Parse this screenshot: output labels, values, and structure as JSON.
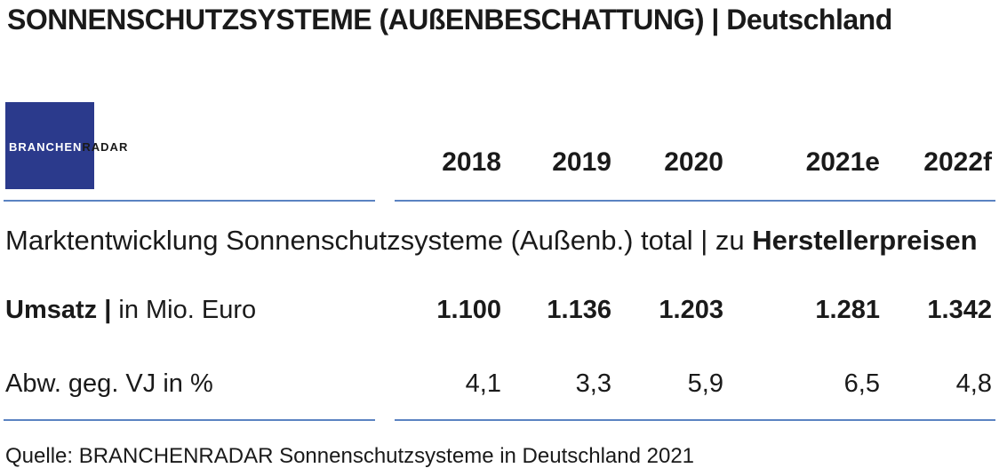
{
  "title": "SONNENSCHUTZSYSTEME (AUßENBESCHATTUNG) | Deutschland",
  "logo": {
    "text_part1": "BRANCHEN",
    "text_part2": "RADAR"
  },
  "section": {
    "label_regular": "Marktentwicklung Sonnenschutzsysteme (Außenb.) total | zu ",
    "label_bold": "Herstellerpreisen"
  },
  "rows": {
    "umsatz": {
      "label_bold": "Umsatz |",
      "label_regular": " in Mio. Euro"
    },
    "abw": {
      "label": "Abw. geg. VJ in %"
    }
  },
  "source": "Quelle: BRANCHENRADAR Sonnenschutzsysteme in Deutschland 2021",
  "chart_data": {
    "type": "table",
    "columns": [
      "2018",
      "2019",
      "2020",
      "2021e",
      "2022f"
    ],
    "rows": [
      {
        "name": "Umsatz | in Mio. Euro",
        "values": [
          "1.100",
          "1.136",
          "1.203",
          "1.281",
          "1.342"
        ]
      },
      {
        "name": "Abw. geg. VJ in %",
        "values": [
          "4,1",
          "3,3",
          "5,9",
          "6,5",
          "4,8"
        ]
      }
    ]
  },
  "colors": {
    "logo_background": "#2b3a8c",
    "rule_lines": "#5b83c2"
  }
}
